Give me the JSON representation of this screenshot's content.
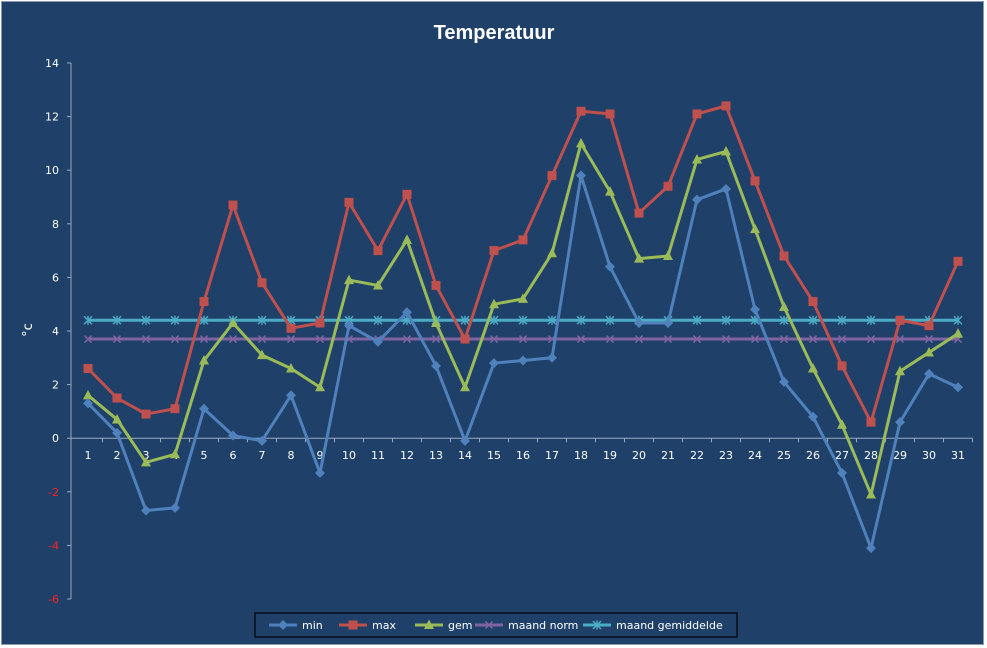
{
  "chart_data": {
    "type": "line",
    "title": "Temperatuur",
    "ylabel": "°c",
    "xlabel": "",
    "ylim": [
      -6,
      14
    ],
    "yticks": [
      14,
      12,
      10,
      8,
      6,
      4,
      2,
      0,
      -2,
      -4,
      -6
    ],
    "categories": [
      "1",
      "2",
      "3",
      "4",
      "5",
      "6",
      "7",
      "8",
      "9",
      "10",
      "11",
      "12",
      "13",
      "14",
      "15",
      "16",
      "17",
      "18",
      "19",
      "20",
      "21",
      "22",
      "23",
      "24",
      "25",
      "26",
      "27",
      "28",
      "29",
      "30",
      "31"
    ],
    "grid": false,
    "legend_position": "bottom",
    "series": [
      {
        "name": "min",
        "color": "#4f81bd",
        "marker": "diamond",
        "values": [
          1.3,
          0.2,
          -2.7,
          -2.6,
          1.1,
          0.1,
          -0.1,
          1.6,
          -1.3,
          4.2,
          3.6,
          4.7,
          2.7,
          -0.1,
          2.8,
          2.9,
          3.0,
          9.8,
          6.4,
          4.3,
          4.3,
          8.9,
          9.3,
          4.8,
          2.1,
          0.8,
          -1.3,
          -4.1,
          0.6,
          2.4,
          1.9
        ]
      },
      {
        "name": "max",
        "color": "#c0504d",
        "marker": "square",
        "values": [
          2.6,
          1.5,
          0.9,
          1.1,
          5.1,
          8.7,
          5.8,
          4.1,
          4.3,
          8.8,
          7.0,
          9.1,
          5.7,
          3.7,
          7.0,
          7.4,
          9.8,
          12.2,
          12.1,
          8.4,
          9.4,
          12.1,
          12.4,
          9.6,
          6.8,
          5.1,
          2.7,
          0.6,
          4.4,
          4.2,
          6.6
        ]
      },
      {
        "name": "gem",
        "color": "#9bbb59",
        "marker": "triangle",
        "values": [
          1.6,
          0.7,
          -0.9,
          -0.6,
          2.9,
          4.3,
          3.1,
          2.6,
          1.9,
          5.9,
          5.7,
          7.4,
          4.3,
          1.9,
          5.0,
          5.2,
          6.9,
          11.0,
          9.2,
          6.7,
          6.8,
          10.4,
          10.7,
          7.8,
          4.9,
          2.6,
          0.5,
          -2.1,
          2.5,
          3.2,
          3.9
        ]
      },
      {
        "name": "maand norm",
        "color": "#8064a2",
        "marker": "x",
        "values": [
          3.7,
          3.7,
          3.7,
          3.7,
          3.7,
          3.7,
          3.7,
          3.7,
          3.7,
          3.7,
          3.7,
          3.7,
          3.7,
          3.7,
          3.7,
          3.7,
          3.7,
          3.7,
          3.7,
          3.7,
          3.7,
          3.7,
          3.7,
          3.7,
          3.7,
          3.7,
          3.7,
          3.7,
          3.7,
          3.7,
          3.7
        ]
      },
      {
        "name": "maand gemiddelde",
        "color": "#4bacc6",
        "marker": "star",
        "values": [
          4.4,
          4.4,
          4.4,
          4.4,
          4.4,
          4.4,
          4.4,
          4.4,
          4.4,
          4.4,
          4.4,
          4.4,
          4.4,
          4.4,
          4.4,
          4.4,
          4.4,
          4.4,
          4.4,
          4.4,
          4.4,
          4.4,
          4.4,
          4.4,
          4.4,
          4.4,
          4.4,
          4.4,
          4.4,
          4.4,
          4.4
        ]
      }
    ]
  }
}
